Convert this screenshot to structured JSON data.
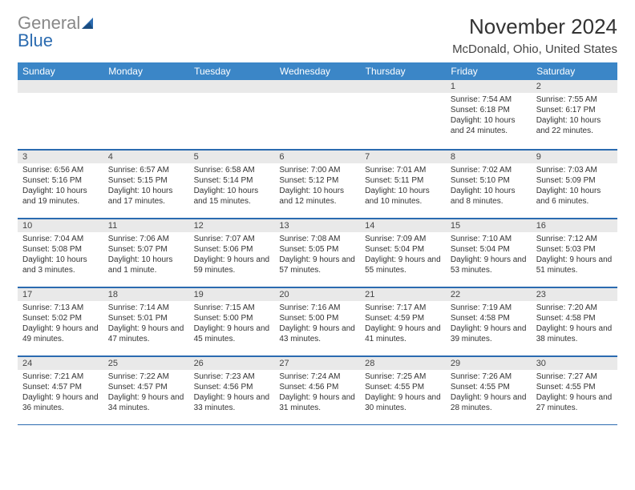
{
  "logo": {
    "textGray": "General",
    "textBlue": "Blue"
  },
  "title": "November 2024",
  "location": "McDonald, Ohio, United States",
  "colors": {
    "headerBg": "#3b86c7",
    "dayNumBg": "#e9e9e9",
    "border": "#2b6bb0",
    "textDark": "#333333",
    "logoBlue": "#2b6bb0",
    "logoGray": "#888888"
  },
  "dayHeaders": [
    "Sunday",
    "Monday",
    "Tuesday",
    "Wednesday",
    "Thursday",
    "Friday",
    "Saturday"
  ],
  "weeks": [
    [
      null,
      null,
      null,
      null,
      null,
      {
        "n": "1",
        "sr": "7:54 AM",
        "ss": "6:18 PM",
        "dl": "10 hours and 24 minutes."
      },
      {
        "n": "2",
        "sr": "7:55 AM",
        "ss": "6:17 PM",
        "dl": "10 hours and 22 minutes."
      }
    ],
    [
      {
        "n": "3",
        "sr": "6:56 AM",
        "ss": "5:16 PM",
        "dl": "10 hours and 19 minutes."
      },
      {
        "n": "4",
        "sr": "6:57 AM",
        "ss": "5:15 PM",
        "dl": "10 hours and 17 minutes."
      },
      {
        "n": "5",
        "sr": "6:58 AM",
        "ss": "5:14 PM",
        "dl": "10 hours and 15 minutes."
      },
      {
        "n": "6",
        "sr": "7:00 AM",
        "ss": "5:12 PM",
        "dl": "10 hours and 12 minutes."
      },
      {
        "n": "7",
        "sr": "7:01 AM",
        "ss": "5:11 PM",
        "dl": "10 hours and 10 minutes."
      },
      {
        "n": "8",
        "sr": "7:02 AM",
        "ss": "5:10 PM",
        "dl": "10 hours and 8 minutes."
      },
      {
        "n": "9",
        "sr": "7:03 AM",
        "ss": "5:09 PM",
        "dl": "10 hours and 6 minutes."
      }
    ],
    [
      {
        "n": "10",
        "sr": "7:04 AM",
        "ss": "5:08 PM",
        "dl": "10 hours and 3 minutes."
      },
      {
        "n": "11",
        "sr": "7:06 AM",
        "ss": "5:07 PM",
        "dl": "10 hours and 1 minute."
      },
      {
        "n": "12",
        "sr": "7:07 AM",
        "ss": "5:06 PM",
        "dl": "9 hours and 59 minutes."
      },
      {
        "n": "13",
        "sr": "7:08 AM",
        "ss": "5:05 PM",
        "dl": "9 hours and 57 minutes."
      },
      {
        "n": "14",
        "sr": "7:09 AM",
        "ss": "5:04 PM",
        "dl": "9 hours and 55 minutes."
      },
      {
        "n": "15",
        "sr": "7:10 AM",
        "ss": "5:04 PM",
        "dl": "9 hours and 53 minutes."
      },
      {
        "n": "16",
        "sr": "7:12 AM",
        "ss": "5:03 PM",
        "dl": "9 hours and 51 minutes."
      }
    ],
    [
      {
        "n": "17",
        "sr": "7:13 AM",
        "ss": "5:02 PM",
        "dl": "9 hours and 49 minutes."
      },
      {
        "n": "18",
        "sr": "7:14 AM",
        "ss": "5:01 PM",
        "dl": "9 hours and 47 minutes."
      },
      {
        "n": "19",
        "sr": "7:15 AM",
        "ss": "5:00 PM",
        "dl": "9 hours and 45 minutes."
      },
      {
        "n": "20",
        "sr": "7:16 AM",
        "ss": "5:00 PM",
        "dl": "9 hours and 43 minutes."
      },
      {
        "n": "21",
        "sr": "7:17 AM",
        "ss": "4:59 PM",
        "dl": "9 hours and 41 minutes."
      },
      {
        "n": "22",
        "sr": "7:19 AM",
        "ss": "4:58 PM",
        "dl": "9 hours and 39 minutes."
      },
      {
        "n": "23",
        "sr": "7:20 AM",
        "ss": "4:58 PM",
        "dl": "9 hours and 38 minutes."
      }
    ],
    [
      {
        "n": "24",
        "sr": "7:21 AM",
        "ss": "4:57 PM",
        "dl": "9 hours and 36 minutes."
      },
      {
        "n": "25",
        "sr": "7:22 AM",
        "ss": "4:57 PM",
        "dl": "9 hours and 34 minutes."
      },
      {
        "n": "26",
        "sr": "7:23 AM",
        "ss": "4:56 PM",
        "dl": "9 hours and 33 minutes."
      },
      {
        "n": "27",
        "sr": "7:24 AM",
        "ss": "4:56 PM",
        "dl": "9 hours and 31 minutes."
      },
      {
        "n": "28",
        "sr": "7:25 AM",
        "ss": "4:55 PM",
        "dl": "9 hours and 30 minutes."
      },
      {
        "n": "29",
        "sr": "7:26 AM",
        "ss": "4:55 PM",
        "dl": "9 hours and 28 minutes."
      },
      {
        "n": "30",
        "sr": "7:27 AM",
        "ss": "4:55 PM",
        "dl": "9 hours and 27 minutes."
      }
    ]
  ],
  "labels": {
    "sunrise": "Sunrise:",
    "sunset": "Sunset:",
    "daylight": "Daylight:"
  }
}
